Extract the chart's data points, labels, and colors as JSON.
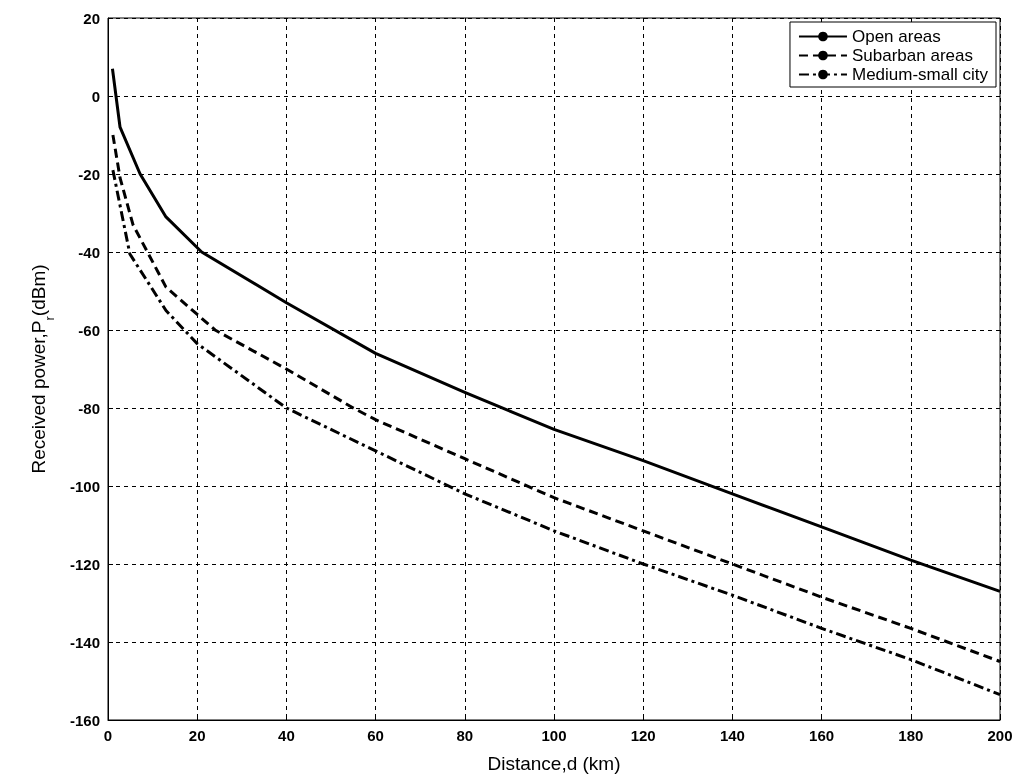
{
  "chart_data": {
    "type": "line",
    "xlabel": "Distance,d (km)",
    "ylabel": "Received power,P$_{r}$(dBm)",
    "xlim": [
      0,
      200
    ],
    "xticks": [
      0,
      20,
      40,
      60,
      80,
      100,
      120,
      140,
      160,
      180,
      200
    ],
    "ylim": [
      -160,
      20
    ],
    "yticks": [
      -160,
      -140,
      -120,
      -100,
      -80,
      -60,
      -40,
      -20,
      0,
      20
    ],
    "grid": true,
    "legend": "top right",
    "marker": "none",
    "series": [
      {
        "name": "Open areas",
        "color": "#000000",
        "line_style": "solid",
        "x": [
          1,
          2.7,
          7.2,
          13,
          21,
          40,
          60,
          80,
          100,
          120,
          140,
          160,
          180,
          200
        ],
        "values": [
          7,
          -8,
          -20,
          -31,
          -40,
          -53,
          -66,
          -76,
          -85.5,
          -93.5,
          -102,
          -110.5,
          -119,
          -127
        ]
      },
      {
        "name": "Subarban areas",
        "color": "#000000",
        "line_style": "dashed",
        "x": [
          1.1,
          2.7,
          5.6,
          13,
          24,
          40,
          55,
          60,
          80,
          100,
          120,
          140,
          160,
          180,
          200
        ],
        "values": [
          -10,
          -21,
          -33,
          -49,
          -60,
          -70,
          -80,
          -83,
          -93,
          -103,
          -111.5,
          -120,
          -128.5,
          -136.5,
          -145
        ]
      },
      {
        "name": "Medium-small city",
        "color": "#000000",
        "line_style": "dashdot",
        "x": [
          1.1,
          4.9,
          13,
          20,
          40,
          60,
          80,
          100,
          120,
          140,
          160,
          180,
          200
        ],
        "values": [
          -19,
          -40.5,
          -55,
          -63.5,
          -80,
          -91,
          -102,
          -111.5,
          -120,
          -128,
          -136.5,
          -144.5,
          -153.5
        ]
      }
    ]
  }
}
